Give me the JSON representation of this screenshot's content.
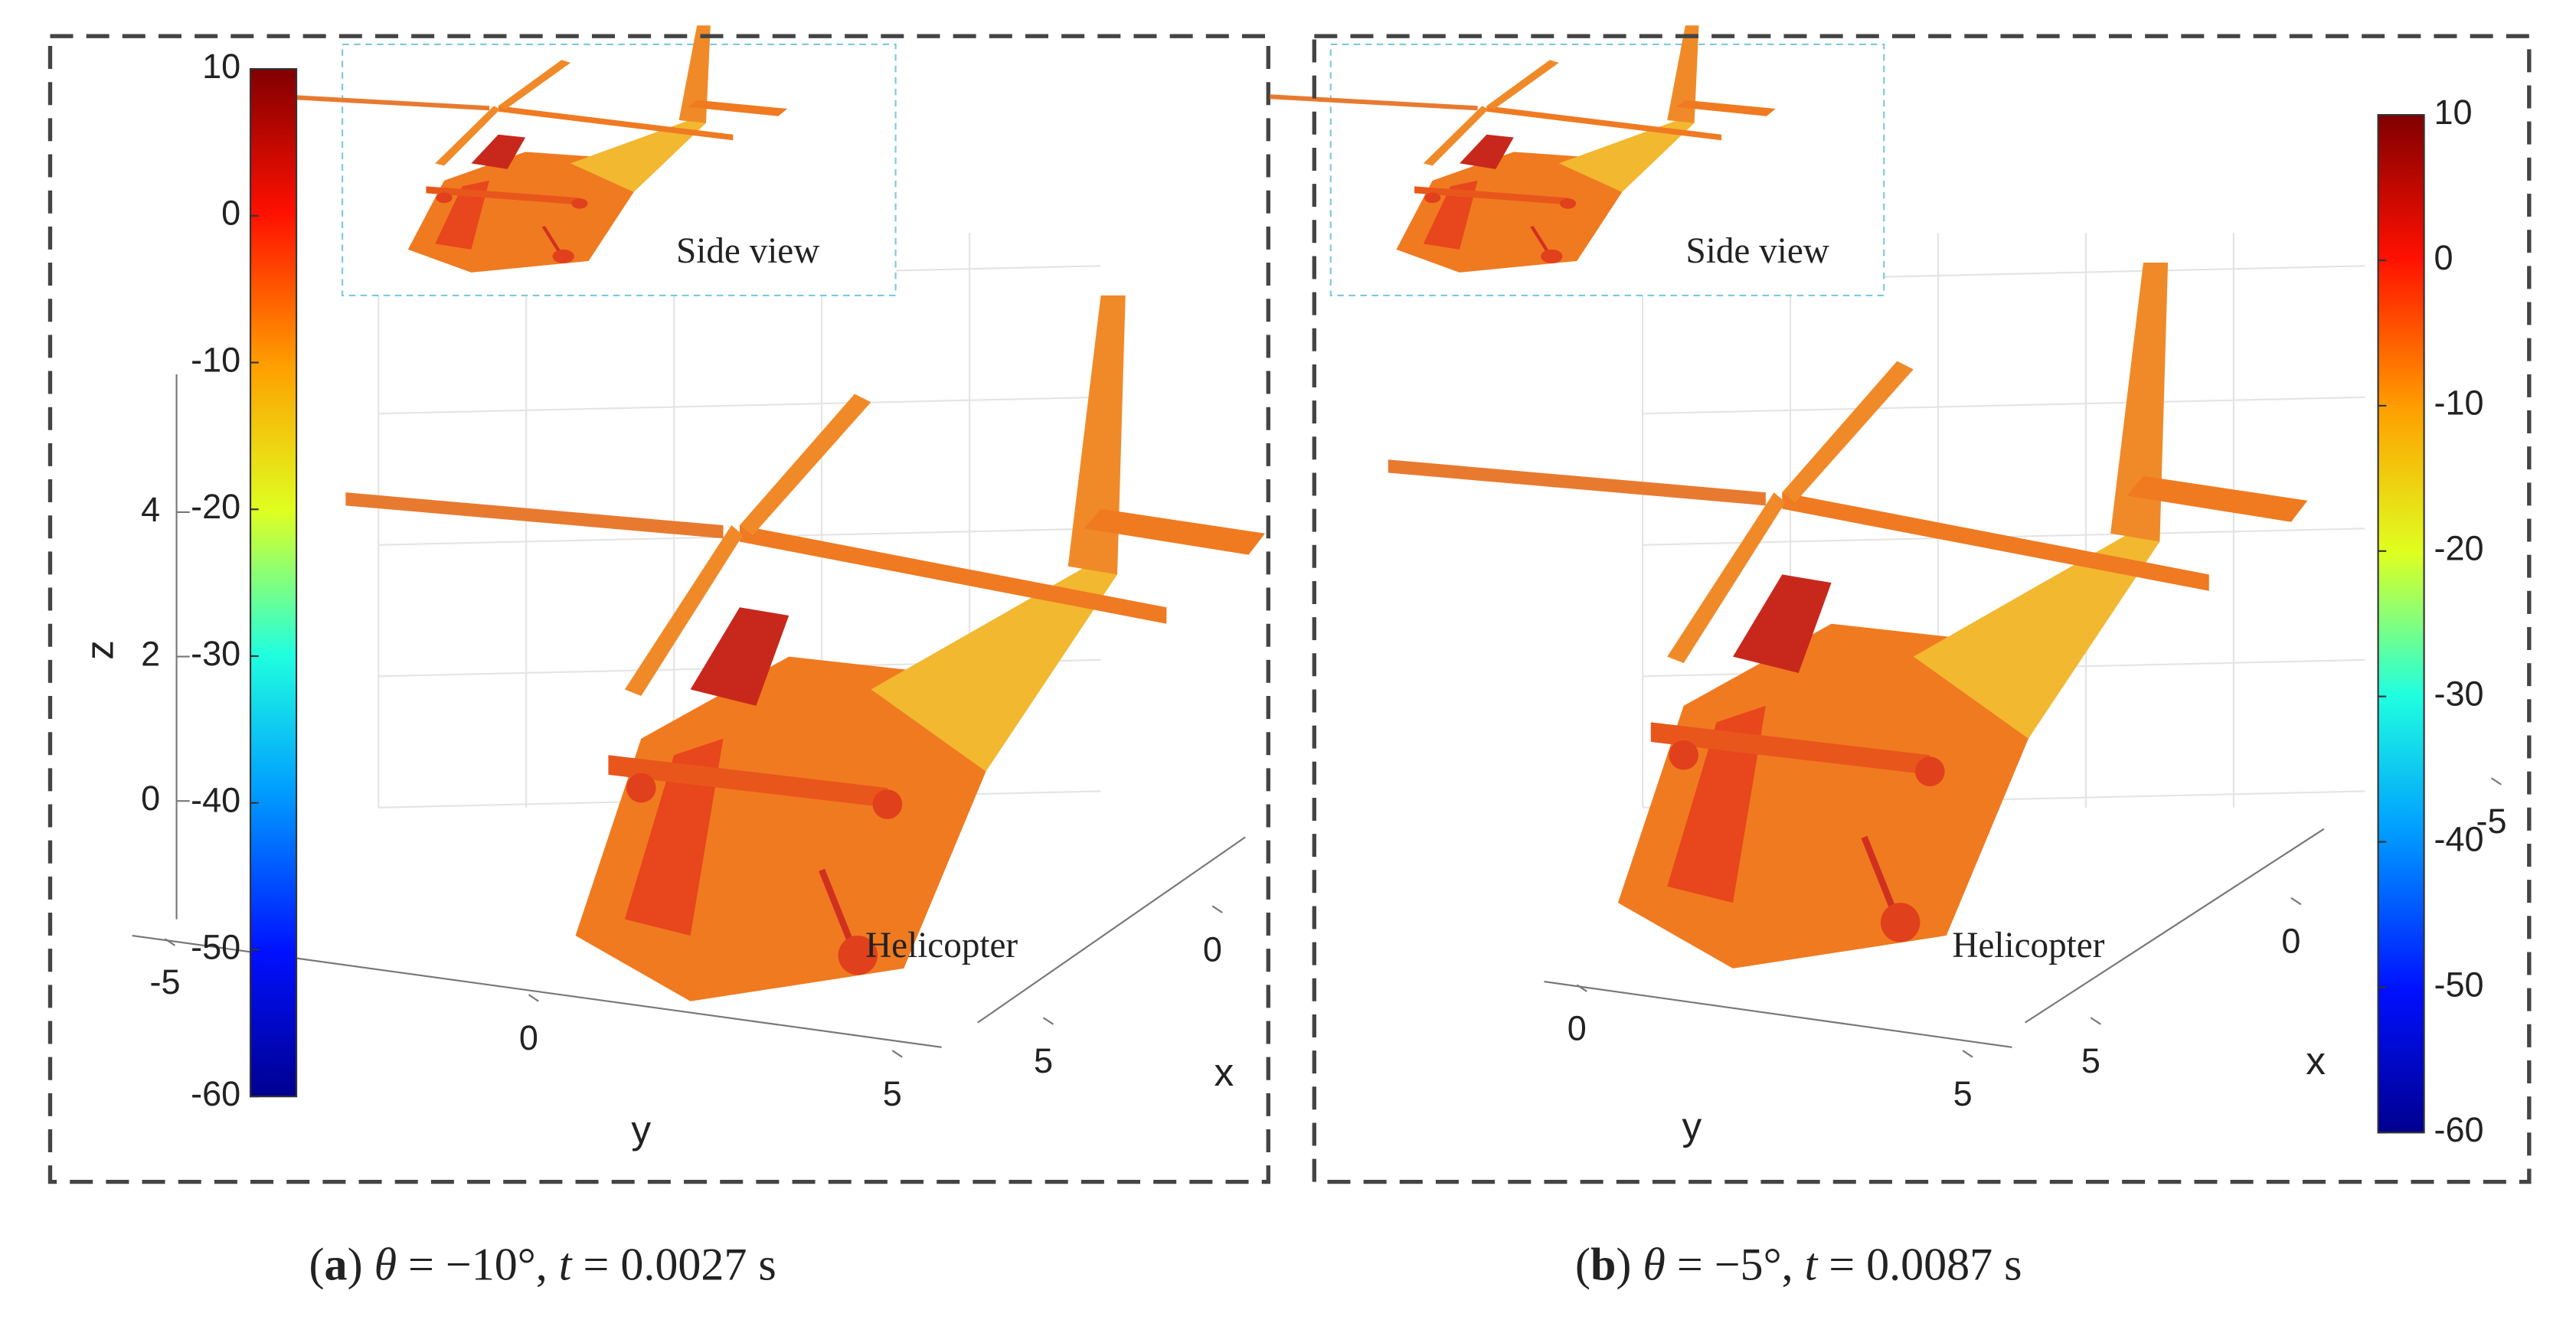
{
  "panels": [
    {
      "colorbar": {
        "range": [
          -60,
          10
        ],
        "ticks": [
          10,
          0,
          -10,
          -20,
          -30,
          -40,
          -50,
          -60
        ]
      },
      "axes": {
        "z_label": "z",
        "z_ticks": [
          0,
          2,
          4
        ],
        "y_label": "y",
        "y_ticks": [
          -5,
          0,
          5
        ],
        "x_label": "x",
        "x_ticks": [
          0,
          5
        ]
      },
      "annotations": {
        "inset": "Side view",
        "main": "Helicopter"
      },
      "caption": [
        {
          "text": "(",
          "style": "normal"
        },
        {
          "text": "a",
          "style": "bold"
        },
        {
          "text": ") ",
          "style": "normal"
        },
        {
          "text": "θ",
          "style": "italic"
        },
        {
          "text": " = −10°, ",
          "style": "normal"
        },
        {
          "text": "t",
          "style": "italic"
        },
        {
          "text": " = 0.0027 s",
          "style": "normal"
        }
      ]
    },
    {
      "colorbar": {
        "range": [
          -60,
          10
        ],
        "ticks": [
          10,
          0,
          -10,
          -20,
          -30,
          -40,
          -50,
          -60
        ]
      },
      "axes": {
        "y_label": "y",
        "y_ticks": [
          0,
          5
        ],
        "x_label": "x",
        "x_ticks": [
          -5,
          0,
          5
        ]
      },
      "annotations": {
        "inset": "Side view",
        "main": "Helicopter"
      },
      "caption": [
        {
          "text": "(",
          "style": "normal"
        },
        {
          "text": "b",
          "style": "bold"
        },
        {
          "text": ") ",
          "style": "normal"
        },
        {
          "text": "θ",
          "style": "italic"
        },
        {
          "text": " = −5°, ",
          "style": "normal"
        },
        {
          "text": "t",
          "style": "italic"
        },
        {
          "text": " = 0.0087 s",
          "style": "normal"
        }
      ]
    }
  ]
}
